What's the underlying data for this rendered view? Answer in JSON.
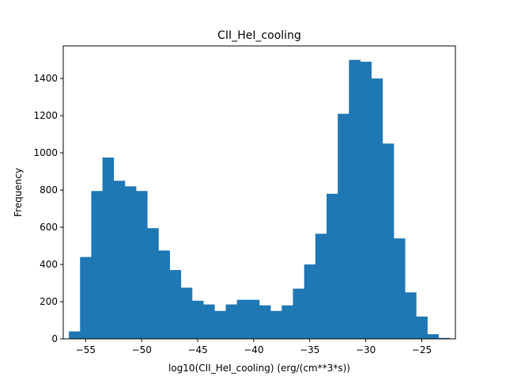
{
  "chart_data": {
    "type": "bar",
    "title": "CII_HeI_cooling",
    "xlabel": "log10(CII_HeI_cooling) (erg/(cm**3*s))",
    "ylabel": "Frequency",
    "xlim": [
      -57.0,
      -22.0
    ],
    "ylim": [
      0,
      1575
    ],
    "bin_start": -56.5,
    "bin_width": 1.0,
    "values": [
      40,
      440,
      795,
      975,
      850,
      820,
      795,
      595,
      475,
      370,
      275,
      205,
      185,
      150,
      185,
      210,
      210,
      180,
      150,
      180,
      270,
      400,
      565,
      780,
      1210,
      1500,
      1490,
      1400,
      1050,
      540,
      250,
      120,
      25,
      5
    ],
    "xticks": [
      -55,
      -50,
      -45,
      -40,
      -35,
      -30,
      -25
    ],
    "yticks": [
      0,
      200,
      400,
      600,
      800,
      1000,
      1200,
      1400
    ],
    "bar_color": "#1f77b4",
    "grid": false
  }
}
